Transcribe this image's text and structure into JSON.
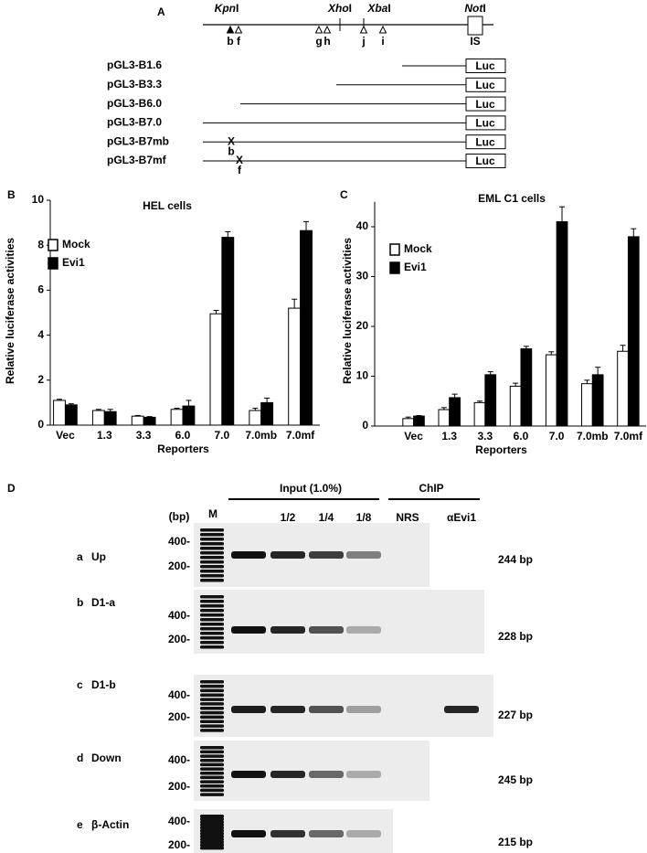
{
  "panel_a": {
    "label": "A",
    "enzymes": [
      [
        "Kpn",
        "I"
      ],
      [
        "Xho",
        "I"
      ],
      [
        "Xba",
        "I"
      ],
      [
        "Not",
        "I"
      ]
    ],
    "sites": [
      "b",
      "f",
      "g",
      "h",
      "j",
      "i"
    ],
    "is_label": "IS",
    "luc": "Luc",
    "constructs": [
      {
        "name": "pGL3-B1.6"
      },
      {
        "name": "pGL3-B3.3"
      },
      {
        "name": "pGL3-B6.0"
      },
      {
        "name": "pGL3-B7.0"
      },
      {
        "name": "pGL3-B7mb",
        "mark": "X",
        "site": "b"
      },
      {
        "name": "pGL3-B7mf",
        "mark": "X",
        "site": "f"
      }
    ]
  },
  "panel_b_label": "B",
  "panel_c_label": "C",
  "chart_data": [
    {
      "type": "bar",
      "title": "HEL cells",
      "y_label": "Relative luciferase activities",
      "x_label": "Reporters",
      "categories": [
        "Vec",
        "1.3",
        "3.3",
        "6.0",
        "7.0",
        "7.0mb",
        "7.0mf"
      ],
      "series": [
        {
          "name": "Mock",
          "color": "#ffffff",
          "values": [
            1.1,
            0.65,
            0.4,
            0.7,
            4.95,
            0.65,
            5.2
          ],
          "errors": [
            0.05,
            0.05,
            0.03,
            0.05,
            0.15,
            0.1,
            0.4
          ]
        },
        {
          "name": "Evi1",
          "color": "#000000",
          "values": [
            0.9,
            0.6,
            0.35,
            0.85,
            8.35,
            1.0,
            8.65
          ],
          "errors": [
            0.05,
            0.1,
            0.03,
            0.25,
            0.25,
            0.2,
            0.4
          ]
        }
      ],
      "ylim": [
        0,
        10
      ],
      "yticks": [
        0,
        2,
        4,
        6,
        8,
        10
      ],
      "legend": "upper left"
    },
    {
      "type": "bar",
      "title": "EML C1 cells",
      "y_label": "Relative luciferase activities",
      "x_label": "Reporters",
      "categories": [
        "Vec",
        "1.3",
        "3.3",
        "6.0",
        "7.0",
        "7.0mb",
        "7.0mf"
      ],
      "series": [
        {
          "name": "Mock",
          "color": "#ffffff",
          "values": [
            1.5,
            3.3,
            4.7,
            8,
            14.3,
            8.5,
            15
          ],
          "errors": [
            0.3,
            0.4,
            0.3,
            0.6,
            0.6,
            0.7,
            1.2
          ]
        },
        {
          "name": "Evi1",
          "color": "#000000",
          "values": [
            2,
            5.7,
            10.3,
            15.5,
            41,
            10.3,
            38
          ],
          "errors": [
            0.1,
            0.7,
            0.6,
            0.5,
            3,
            1.5,
            1.6
          ]
        }
      ],
      "ylim": [
        0,
        45
      ],
      "yticks": [
        0,
        10,
        20,
        30,
        40
      ],
      "legend": "upper left"
    }
  ],
  "panel_d": {
    "label": "D",
    "input_header": "Input (1.0%)",
    "chip_header": "ChIP",
    "bp_header": "(bp)",
    "lanes": [
      "M",
      "1/2",
      "1/4",
      "1/8",
      "NRS",
      "αEvi1"
    ],
    "markers": [
      "400-",
      "200-"
    ],
    "rows": [
      {
        "letter": "a",
        "name": "Up",
        "size": "244 bp"
      },
      {
        "letter": "b",
        "name": "D1-a",
        "size": "228 bp"
      },
      {
        "letter": "c",
        "name": "D1-b",
        "size": "227 bp"
      },
      {
        "letter": "d",
        "name": "Down",
        "size": "245 bp"
      },
      {
        "letter": "e",
        "name": "β-Actin",
        "size": "215 bp"
      }
    ]
  }
}
